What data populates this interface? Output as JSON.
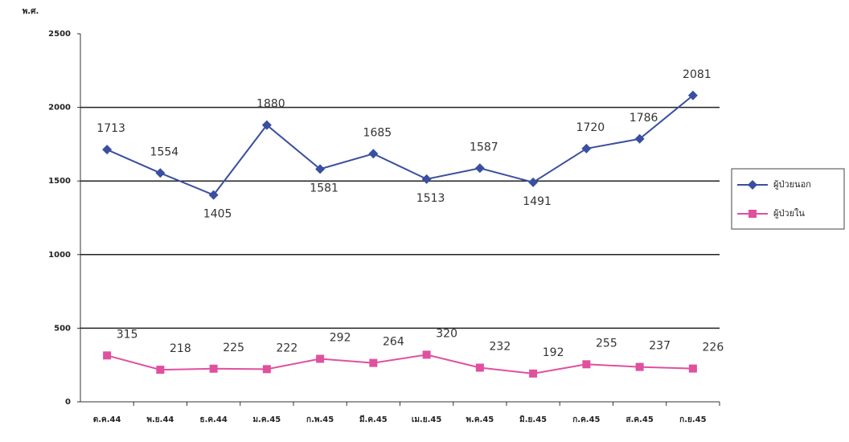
{
  "chart_data": {
    "type": "line",
    "y_label": "พ.ศ.",
    "categories": [
      "ต.ค.44",
      "พ.ย.44",
      "ธ.ค.44",
      "ม.ค.45",
      "ก.พ.45",
      "มี.ค.45",
      "เม.ย.45",
      "พ.ค.45",
      "มิ.ย.45",
      "ก.ค.45",
      "ส.ค.45",
      "ก.ย.45"
    ],
    "series": [
      {
        "name": "ผู้ป่วยนอก",
        "color": "#3a4fa0",
        "marker": "diamond",
        "values": [
          1713,
          1554,
          1405,
          1880,
          1581,
          1685,
          1513,
          1587,
          1491,
          1720,
          1786,
          2081
        ]
      },
      {
        "name": "ผู้ป่วยใน",
        "color": "#e0509e",
        "marker": "square",
        "values": [
          315,
          218,
          225,
          222,
          292,
          264,
          320,
          232,
          192,
          255,
          237,
          226
        ]
      }
    ],
    "ylim": [
      0,
      2500
    ],
    "yticks": [
      0,
      500,
      1000,
      1500,
      2000,
      2500
    ],
    "grid": true,
    "legend": "right"
  }
}
